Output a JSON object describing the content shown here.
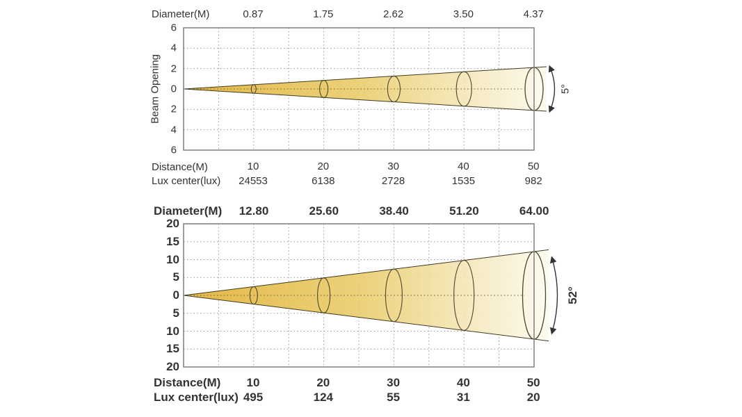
{
  "page": {
    "background": "#ffffff"
  },
  "colors": {
    "beam_start": "#e0b032",
    "beam_mid": "#eacc6b",
    "beam_end": "#fcfaee",
    "cone_edge": "#3f3a22",
    "ellipse_stroke": "#4c4630",
    "grid": "#9b9b9b",
    "grid_dark": "#6b6342",
    "frame": "#7d7d7d",
    "text": "#333333",
    "arrow": "#333333"
  },
  "chart_data": [
    {
      "type": "area",
      "beam_angle_label": "5°",
      "beam_angle_deg": 5,
      "header": {
        "label": "Diameter(M)",
        "values": [
          "0.87",
          "1.75",
          "2.62",
          "3.50",
          "4.37"
        ]
      },
      "y_axis": {
        "label": "Beam Opening",
        "ticks": [
          "6",
          "4",
          "2",
          "0",
          "2",
          "4",
          "6"
        ],
        "ylim": [
          -6,
          6
        ]
      },
      "x_axis": {
        "label": "Distance(M)",
        "values": [
          "10",
          "20",
          "30",
          "40",
          "50"
        ],
        "xlim": [
          0,
          50
        ]
      },
      "lux": {
        "label": "Lux center(lux)",
        "values": [
          "24553",
          "6138",
          "2728",
          "1535",
          "982"
        ]
      },
      "grid": "dotted"
    },
    {
      "type": "area",
      "beam_angle_label": "52°",
      "beam_angle_deg": 52,
      "header": {
        "label": "Diameter(M)",
        "values": [
          "12.80",
          "25.60",
          "38.40",
          "51.20",
          "64.00"
        ]
      },
      "y_axis": {
        "label": "",
        "ticks": [
          "20",
          "15",
          "10",
          "5",
          "0",
          "5",
          "10",
          "15",
          "20"
        ],
        "ylim": [
          -20,
          20
        ]
      },
      "x_axis": {
        "label": "Distance(M)",
        "values": [
          "10",
          "20",
          "30",
          "40",
          "50"
        ],
        "xlim": [
          0,
          50
        ]
      },
      "lux": {
        "label": "Lux center(lux)",
        "values": [
          "495",
          "124",
          "55",
          "31",
          "20"
        ]
      },
      "grid": "dotted"
    }
  ]
}
